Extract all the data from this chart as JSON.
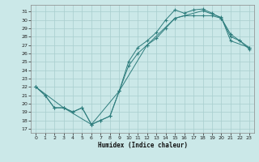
{
  "title": "",
  "xlabel": "Humidex (Indice chaleur)",
  "bg_color": "#cbe8e8",
  "line_color": "#2e7d7d",
  "grid_color": "#a8cece",
  "xlim": [
    -0.5,
    23.5
  ],
  "ylim": [
    16.5,
    31.8
  ],
  "yticks": [
    17,
    18,
    19,
    20,
    21,
    22,
    23,
    24,
    25,
    26,
    27,
    28,
    29,
    30,
    31
  ],
  "xticks": [
    0,
    1,
    2,
    3,
    4,
    5,
    6,
    7,
    8,
    9,
    10,
    11,
    12,
    13,
    14,
    15,
    16,
    17,
    18,
    19,
    20,
    21,
    22,
    23
  ],
  "line1_x": [
    0,
    1,
    2,
    3,
    4,
    5,
    6,
    7,
    8,
    9,
    10,
    11,
    12,
    13,
    14,
    15,
    16,
    17,
    18,
    19,
    20,
    21,
    22,
    23
  ],
  "line1_y": [
    22.0,
    21.0,
    19.5,
    19.5,
    19.0,
    19.5,
    17.5,
    18.0,
    18.5,
    21.5,
    25.0,
    26.7,
    27.5,
    28.5,
    30.0,
    31.2,
    30.8,
    31.2,
    31.3,
    30.8,
    30.2,
    28.0,
    27.5,
    26.5
  ],
  "line2_x": [
    0,
    1,
    2,
    3,
    4,
    5,
    6,
    7,
    8,
    9,
    10,
    11,
    12,
    13,
    14,
    15,
    16,
    17,
    18,
    19,
    20,
    21,
    22,
    23
  ],
  "line2_y": [
    22.0,
    21.0,
    19.5,
    19.5,
    19.0,
    19.5,
    17.5,
    18.0,
    18.5,
    21.5,
    24.5,
    26.0,
    27.0,
    27.8,
    29.0,
    30.2,
    30.5,
    30.5,
    30.5,
    30.5,
    30.2,
    28.3,
    27.5,
    26.7
  ],
  "line3_x": [
    0,
    3,
    6,
    9,
    12,
    15,
    18,
    20,
    21,
    23
  ],
  "line3_y": [
    22.0,
    19.5,
    17.5,
    21.5,
    27.0,
    30.2,
    31.1,
    30.3,
    27.5,
    26.7
  ]
}
